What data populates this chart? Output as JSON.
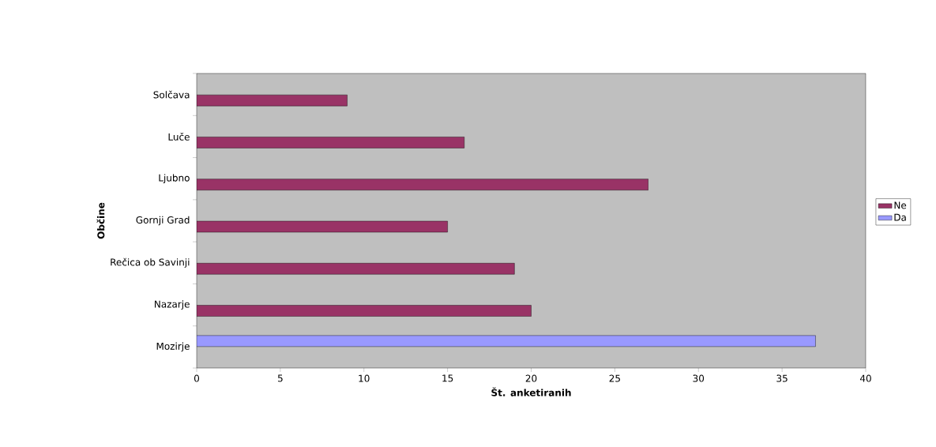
{
  "chart_data": {
    "type": "bar",
    "orientation": "horizontal",
    "xlabel": "Št. anketiranih",
    "ylabel": "Občine",
    "categories": [
      "Solčava",
      "Luče",
      "Ljubno",
      "Gornji Grad",
      "Rečica ob Savinji",
      "Nazarje",
      "Mozirje"
    ],
    "series": [
      {
        "name": "Ne",
        "color": "#993366",
        "values": [
          9,
          16,
          27,
          15,
          19,
          20,
          null
        ]
      },
      {
        "name": "Da",
        "color": "#9999ff",
        "values": [
          null,
          null,
          null,
          null,
          null,
          null,
          37
        ]
      }
    ],
    "xlim": [
      0,
      40
    ],
    "xticks": [
      0,
      5,
      10,
      15,
      20,
      25,
      30,
      35,
      40
    ],
    "legend": "right"
  }
}
